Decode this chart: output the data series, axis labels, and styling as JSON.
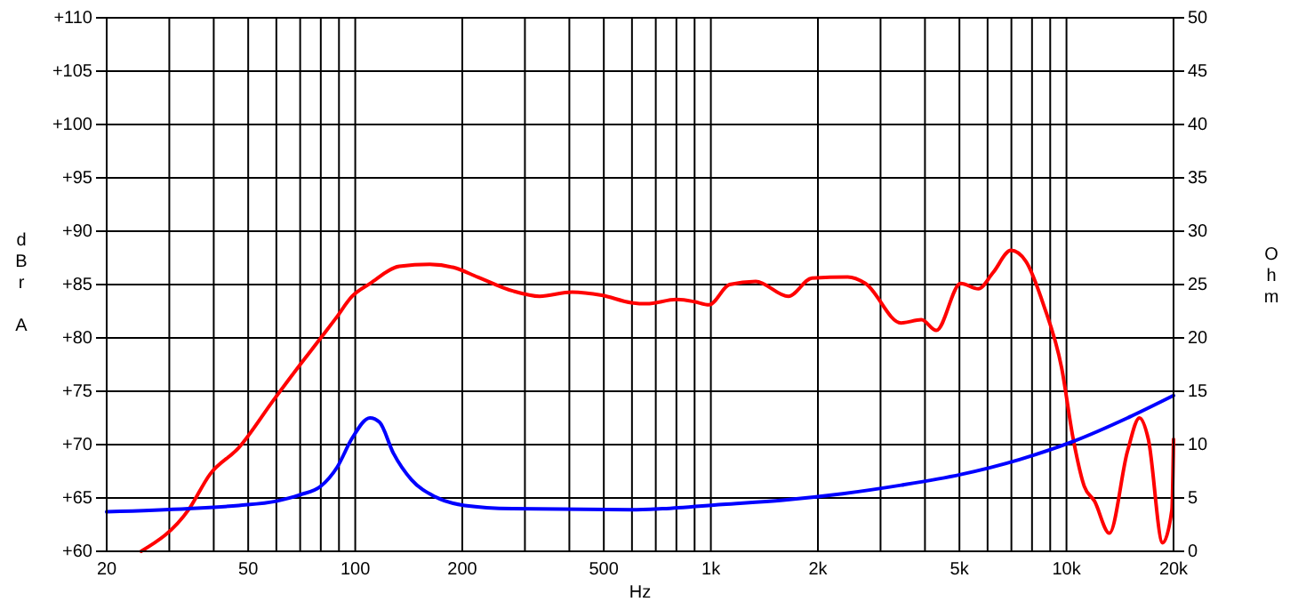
{
  "chart_data": {
    "type": "line",
    "xlabel": "Hz",
    "ylabel": "dBr A",
    "y2label": "Ohm",
    "log": "x",
    "grid": true,
    "marker": "none",
    "line_style": "solid",
    "xlim": [
      20,
      20000
    ],
    "ylim": [
      60,
      110
    ],
    "y2lim": [
      0,
      50
    ],
    "xticks": [
      20,
      {
        "value": 30,
        "label": null
      },
      {
        "value": 40,
        "label": null
      },
      50,
      {
        "value": 60,
        "label": null
      },
      {
        "value": 70,
        "label": null
      },
      {
        "value": 80,
        "label": null
      },
      {
        "value": 90,
        "label": null
      },
      100,
      200,
      {
        "value": 300,
        "label": null
      },
      {
        "value": 400,
        "label": null
      },
      500,
      {
        "value": 600,
        "label": null
      },
      {
        "value": 700,
        "label": null
      },
      {
        "value": 800,
        "label": null
      },
      {
        "value": 900,
        "label": null
      },
      {
        "value": 1000,
        "label": "1k"
      },
      {
        "value": 2000,
        "label": "2k"
      },
      {
        "value": 3000,
        "label": null
      },
      {
        "value": 4000,
        "label": null
      },
      {
        "value": 5000,
        "label": "5k"
      },
      {
        "value": 6000,
        "label": null
      },
      {
        "value": 7000,
        "label": null
      },
      {
        "value": 8000,
        "label": null
      },
      {
        "value": 9000,
        "label": null
      },
      {
        "value": 10000,
        "label": "10k"
      },
      {
        "value": 20000,
        "label": "20k"
      }
    ],
    "yticks": [
      {
        "value": 60,
        "label": "+60"
      },
      {
        "value": 65,
        "label": "+65"
      },
      {
        "value": 70,
        "label": "+70"
      },
      {
        "value": 75,
        "label": "+75"
      },
      {
        "value": 80,
        "label": "+80"
      },
      {
        "value": 85,
        "label": "+85"
      },
      {
        "value": 90,
        "label": "+90"
      },
      {
        "value": 95,
        "label": "+95"
      },
      {
        "value": 100,
        "label": "+100"
      },
      {
        "value": 105,
        "label": "+105"
      },
      {
        "value": 110,
        "label": "+110"
      }
    ],
    "y2ticks": [
      0,
      5,
      10,
      15,
      20,
      25,
      30,
      35,
      40,
      45,
      50
    ],
    "series": [
      {
        "color": "#ff0000",
        "x": [
          25,
          34,
          39,
          47,
          59,
          70,
          80,
          88,
          98,
          110,
          133,
          162,
          189,
          221,
          277,
          330,
          407,
          493,
          598,
          660,
          800,
          897,
          988,
          1128,
          1337,
          1652,
          1925,
          2425,
          2720,
          3426,
          3910,
          4305,
          5040,
          5650,
          6210,
          6980,
          7680,
          8620,
          9690,
          10450,
          11220,
          11990,
          13200,
          14850,
          16040,
          16990,
          18640,
          19790,
          20000
        ],
        "values": [
          60,
          63.9,
          67.2,
          69.7,
          74.2,
          77.5,
          80,
          81.8,
          83.9,
          85.1,
          86.7,
          86.9,
          86.6,
          85.7,
          84.4,
          83.9,
          84.3,
          84,
          83.3,
          83.2,
          83.6,
          83.4,
          83.1,
          85,
          85.3,
          83.9,
          85.6,
          85.7,
          85.1,
          81.4,
          81.7,
          80.7,
          85.1,
          84.6,
          86.1,
          88.2,
          87.2,
          83.1,
          77.2,
          70.5,
          66.1,
          64.7,
          61.7,
          69.4,
          72.5,
          70.5,
          60.8,
          63.9,
          70.5
        ]
      },
      {
        "color": "#0000ff",
        "axis": "y2",
        "x": [
          20,
          34,
          47,
          60,
          70,
          80,
          89,
          98,
          110,
          117,
          128,
          144,
          168,
          203,
          277,
          598,
          732,
          1078,
          1595,
          2347,
          3426,
          5040,
          7370,
          10450,
          14850,
          20000
        ],
        "values": [
          3.7,
          4,
          4.3,
          4.7,
          5.3,
          6.1,
          7.9,
          10.6,
          12.5,
          12.1,
          9.2,
          6.7,
          5.1,
          4.3,
          4,
          3.9,
          4,
          4.4,
          4.8,
          5.4,
          6.2,
          7.2,
          8.6,
          10.3,
          12.5,
          14.6
        ]
      }
    ]
  }
}
